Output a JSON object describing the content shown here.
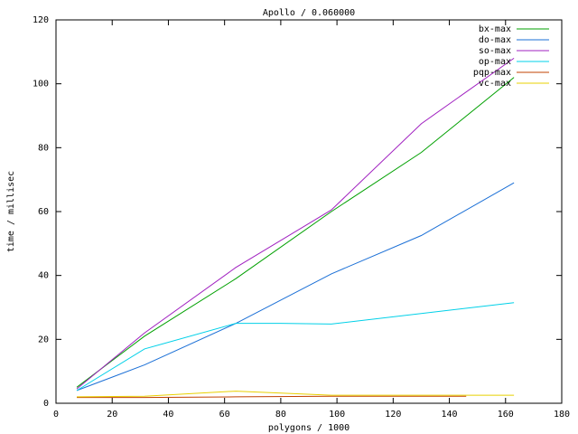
{
  "chart_data": {
    "type": "line",
    "title": "Apollo / 0.060000",
    "x_label": "polygons / 1000",
    "y_label": "time / millisec",
    "xlim": [
      0,
      180
    ],
    "xticks": [
      0,
      20,
      40,
      60,
      80,
      100,
      120,
      140,
      160,
      180
    ],
    "ylim": [
      0,
      120
    ],
    "yticks": [
      0,
      20,
      40,
      60,
      80,
      100,
      120
    ],
    "legend": "top-right",
    "series": [
      {
        "name": "bx-max",
        "color": "#00a000",
        "x": [
          7.4,
          31.5,
          64,
          98,
          130,
          163
        ],
        "values": [
          5,
          21,
          39,
          60,
          78.5,
          102
        ]
      },
      {
        "name": "do-max",
        "color": "#1a6fd6",
        "x": [
          7.4,
          31.5,
          64,
          98,
          130,
          163
        ],
        "values": [
          4,
          12,
          25,
          40.5,
          52.5,
          69
        ]
      },
      {
        "name": "so-max",
        "color": "#a020c0",
        "x": [
          7.4,
          31.5,
          64,
          98,
          130,
          163
        ],
        "values": [
          4.5,
          22,
          42.5,
          60.5,
          87.5,
          108
        ]
      },
      {
        "name": "op-max",
        "color": "#00d0e8",
        "x": [
          7.4,
          31.5,
          64,
          80,
          98,
          163
        ],
        "values": [
          4,
          17,
          25,
          25,
          24.8,
          31.5
        ]
      },
      {
        "name": "pqp-max",
        "color": "#c04000",
        "x": [
          7.4,
          31.5,
          64,
          98,
          130,
          146
        ],
        "values": [
          1.8,
          1.8,
          2,
          2.2,
          2.2,
          2.2
        ]
      },
      {
        "name": "vc-max",
        "color": "#e8d000",
        "x": [
          7.4,
          31.5,
          64,
          98,
          130,
          163
        ],
        "values": [
          2,
          2.2,
          3.8,
          2.5,
          2.5,
          2.5
        ]
      }
    ]
  }
}
